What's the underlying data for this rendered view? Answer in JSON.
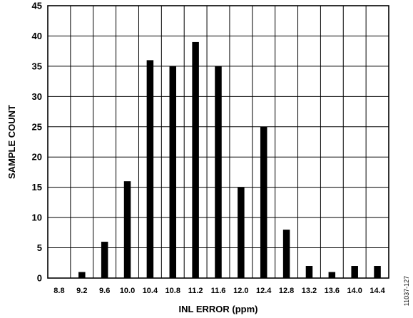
{
  "chart_data": {
    "type": "bar",
    "xlabel": "INL ERROR (ppm)",
    "ylabel": "SAMPLE COUNT",
    "categories": [
      "8.8",
      "9.2",
      "9.6",
      "10.0",
      "10.4",
      "10.8",
      "11.2",
      "11.6",
      "12.0",
      "12.4",
      "12.8",
      "13.2",
      "13.6",
      "14.0",
      "14.4"
    ],
    "values": [
      0,
      1,
      6,
      16,
      36,
      35,
      39,
      35,
      15,
      25,
      8,
      2,
      1,
      2,
      2
    ],
    "ylim": [
      0,
      45
    ],
    "yticks": [
      "0",
      "5",
      "10",
      "15",
      "20",
      "25",
      "30",
      "35",
      "40",
      "45"
    ],
    "grid": true,
    "bar_color": "#000000",
    "figure_id": "11037-127"
  }
}
